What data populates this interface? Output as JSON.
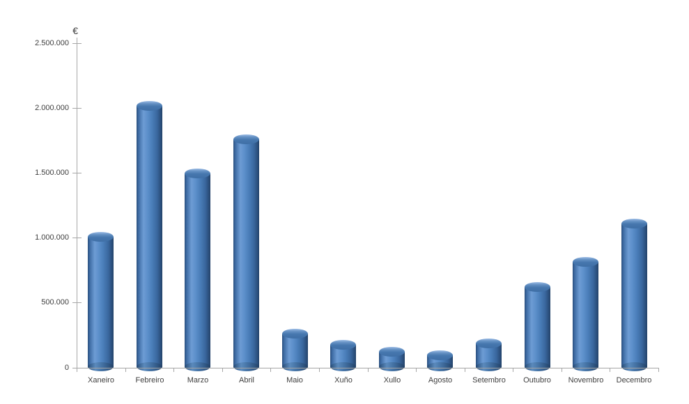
{
  "chart_data": {
    "type": "bar",
    "subtype": "cylinder-3d",
    "title": "",
    "xlabel": "",
    "ylabel": "€",
    "categories": [
      "Xaneiro",
      "Febreiro",
      "Marzo",
      "Abril",
      "Maio",
      "Xuño",
      "Xullo",
      "Agosto",
      "Setembro",
      "Outubro",
      "Novembro",
      "Decembro"
    ],
    "values": [
      1005000,
      2015000,
      1495000,
      1760000,
      260000,
      175000,
      120000,
      95000,
      185000,
      620000,
      815000,
      1110000
    ],
    "ylim": [
      0,
      2500000
    ],
    "y_tick_interval": 500000,
    "y_tick_labels": [
      "0",
      "500.000",
      "1.000.000",
      "1.500.000",
      "2.000.000",
      "2.500.000"
    ],
    "grid": false,
    "legend": "none",
    "background_color": "#ffffff",
    "bar_color": "#4F81BD",
    "axis_color": "#A6A6A6",
    "label_color": "#3D3D3D"
  }
}
